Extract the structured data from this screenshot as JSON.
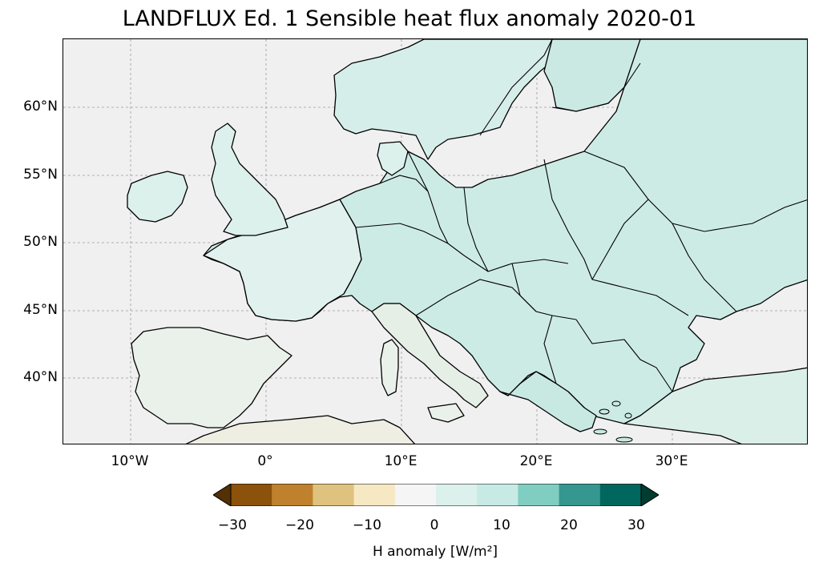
{
  "title": "LANDFLUX Ed. 1 Sensible heat flux anomaly 2020-01",
  "map": {
    "extent": {
      "lon": [
        -15,
        40
      ],
      "lat": [
        35,
        65
      ]
    },
    "projection": "PlateCarree",
    "gridlines": true,
    "ocean_color": "#f0f0f0",
    "border_color": "#000000",
    "lon_ticks": [
      "10°W",
      "0°",
      "10°E",
      "20°E",
      "30°E"
    ],
    "lat_ticks": [
      "60°N",
      "55°N",
      "50°N",
      "45°N",
      "40°N"
    ]
  },
  "colorbar": {
    "label": "H anomaly [W/m²]",
    "tick_labels": [
      "−30",
      "−20",
      "−10",
      "0",
      "10",
      "20",
      "30"
    ],
    "colors": [
      "#543005",
      "#8c510a",
      "#bf812d",
      "#dfc27d",
      "#f6e8c3",
      "#f5f5f5",
      "#dcf0ec",
      "#c7eae5",
      "#80cdc1",
      "#35978f",
      "#01665e",
      "#003c30"
    ],
    "extend": "both"
  }
}
